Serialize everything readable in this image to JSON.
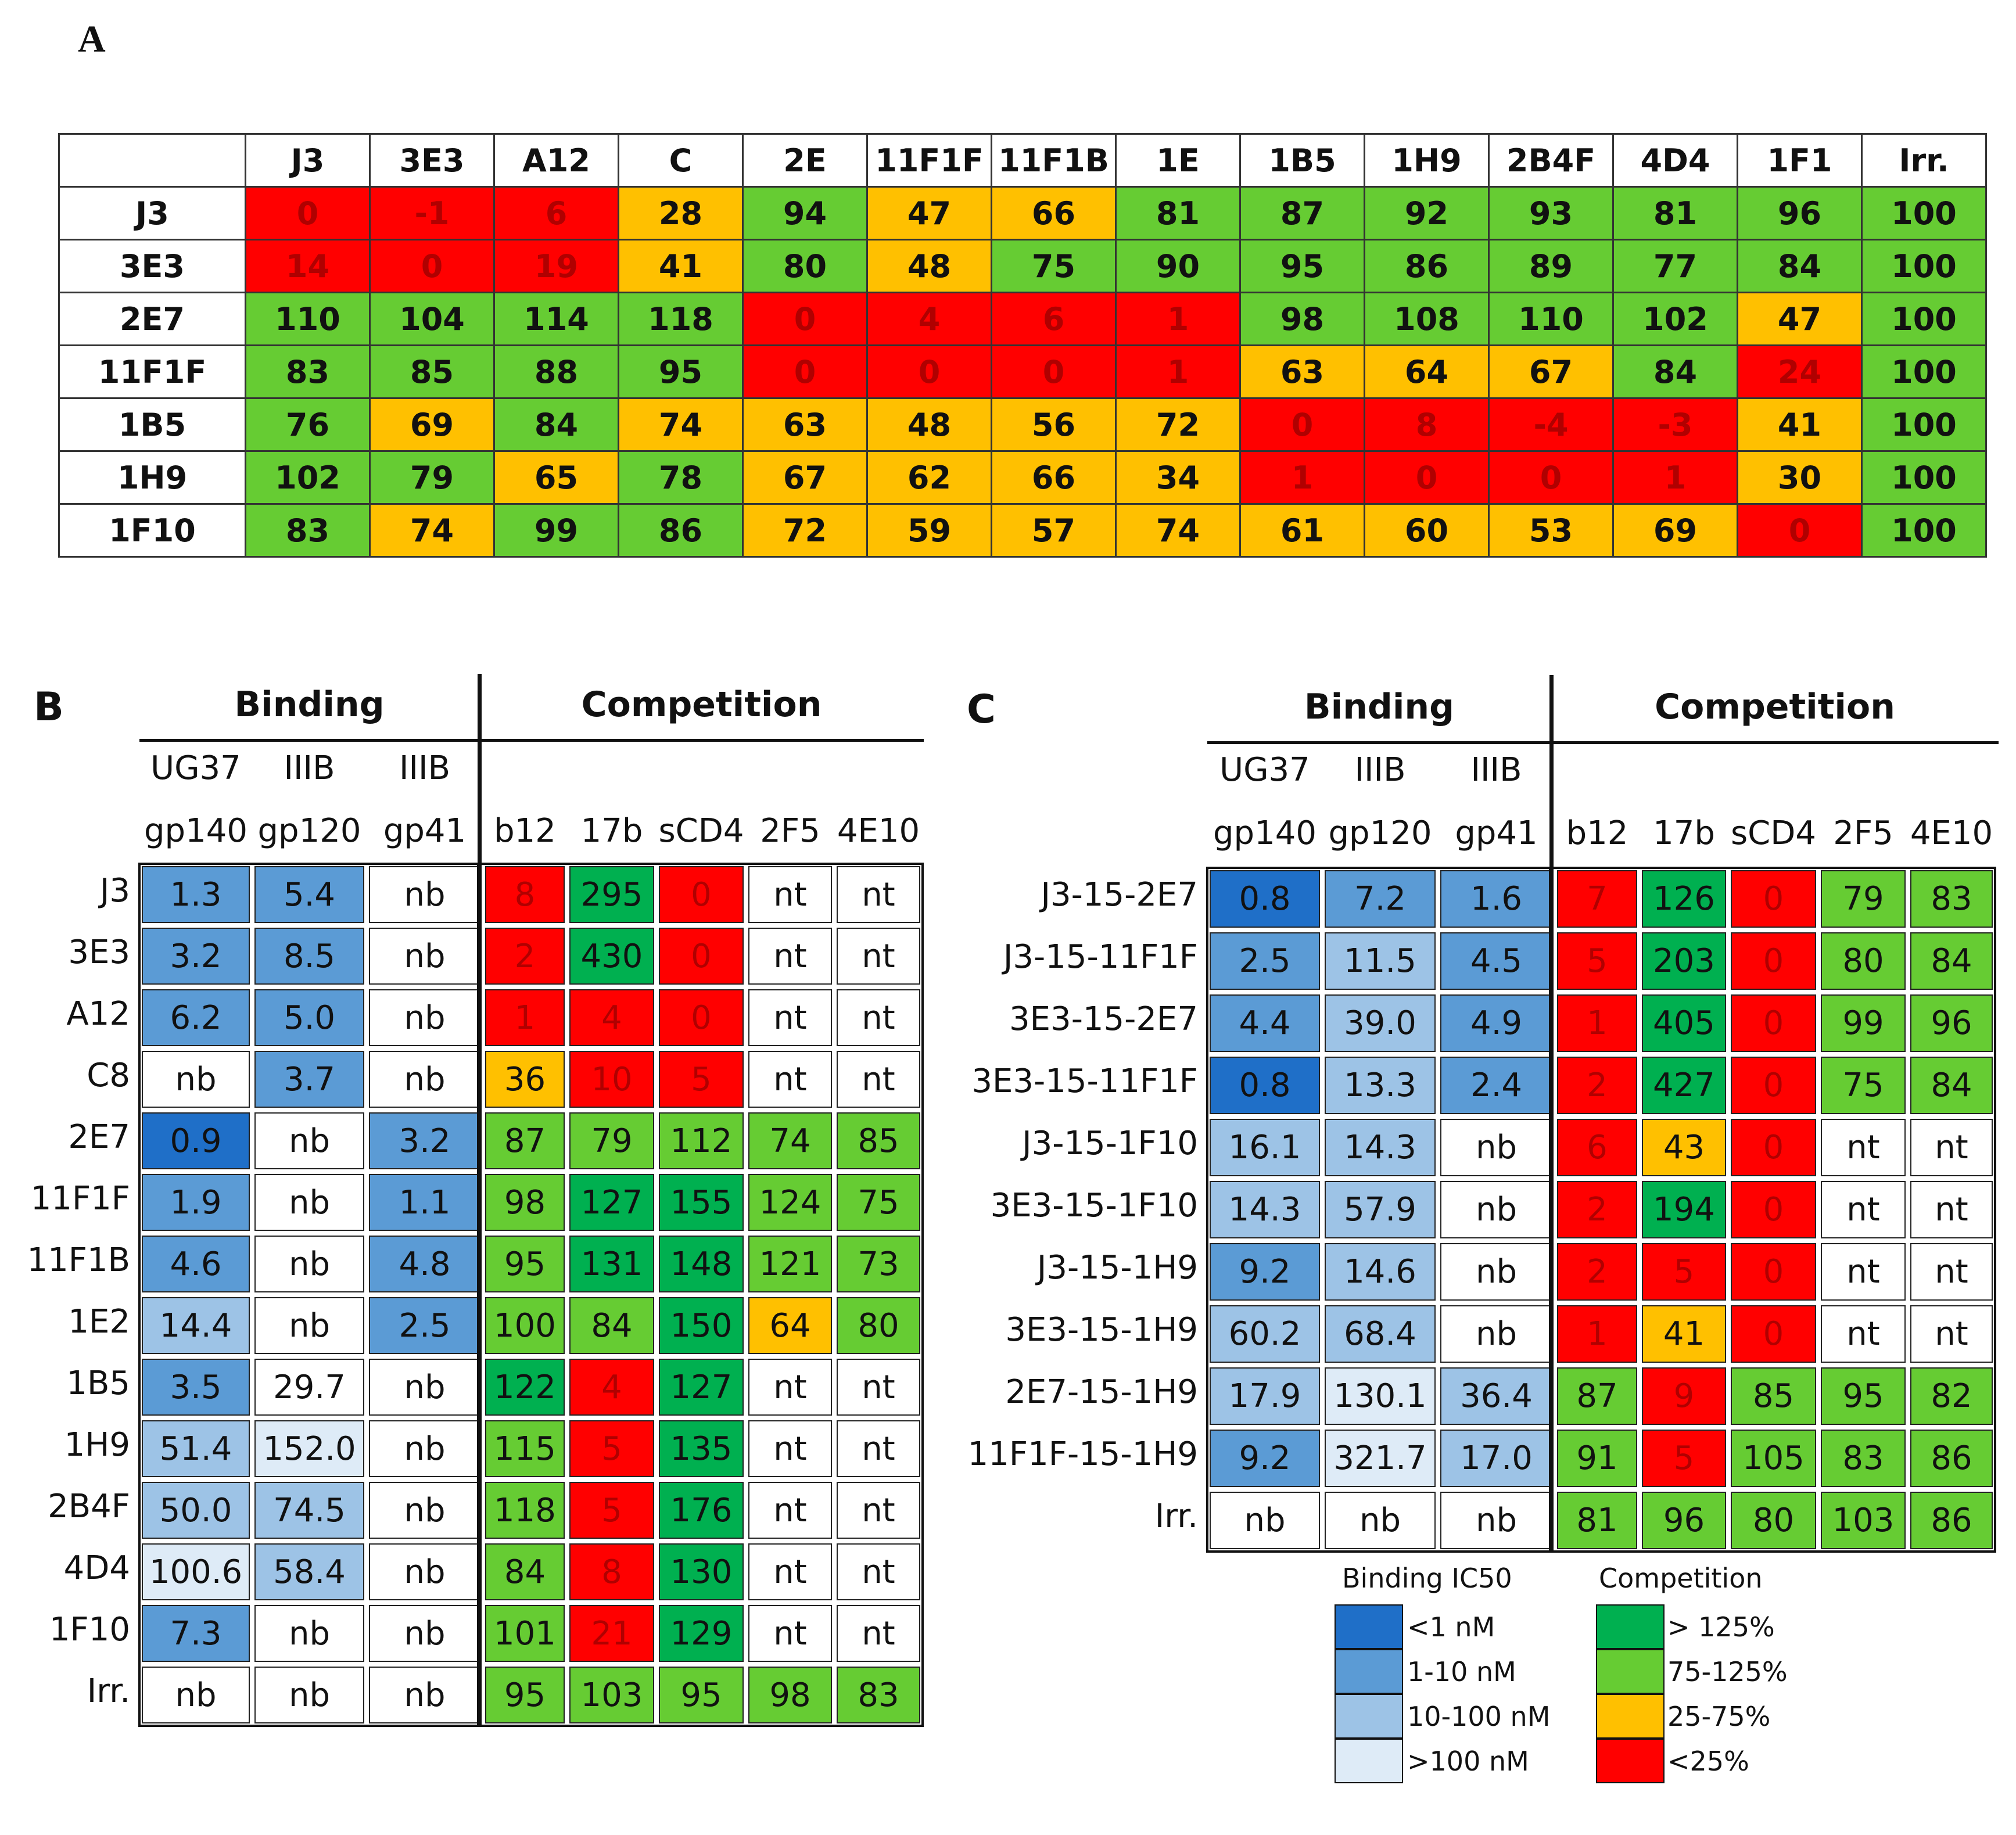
{
  "panel_labels": {
    "a": "A",
    "b": "B",
    "c": "C"
  },
  "colors": {
    "red": "#ff0000",
    "orange": "#ffc000",
    "green": "#66cc33",
    "dark_green": "#00b050",
    "blue_dark": "#1f6fc8",
    "blue": "#5b9bd5",
    "blue_light": "#9dc3e6",
    "blue_pale": "#deebf7",
    "white": "#ffffff"
  },
  "panel_a": {
    "columns": [
      "J3",
      "3E3",
      "A12",
      "C",
      "2E",
      "11F1F",
      "11F1B",
      "1E",
      "1B5",
      "1H9",
      "2B4F",
      "4D4",
      "1F1",
      "Irr."
    ],
    "rows": [
      {
        "label": "J3",
        "values": [
          "0",
          "-1",
          "6",
          "28",
          "94",
          "47",
          "66",
          "81",
          "87",
          "92",
          "93",
          "81",
          "96",
          "100"
        ],
        "colors": [
          "r",
          "r",
          "r",
          "o",
          "g",
          "o",
          "o",
          "g",
          "g",
          "g",
          "g",
          "g",
          "g",
          "g"
        ]
      },
      {
        "label": "3E3",
        "values": [
          "14",
          "0",
          "19",
          "41",
          "80",
          "48",
          "75",
          "90",
          "95",
          "86",
          "89",
          "77",
          "84",
          "100"
        ],
        "colors": [
          "r",
          "r",
          "r",
          "o",
          "g",
          "o",
          "g",
          "g",
          "g",
          "g",
          "g",
          "g",
          "g",
          "g"
        ]
      },
      {
        "label": "2E7",
        "values": [
          "110",
          "104",
          "114",
          "118",
          "0",
          "4",
          "6",
          "1",
          "98",
          "108",
          "110",
          "102",
          "47",
          "100"
        ],
        "colors": [
          "g",
          "g",
          "g",
          "g",
          "r",
          "r",
          "r",
          "r",
          "g",
          "g",
          "g",
          "g",
          "o",
          "g"
        ]
      },
      {
        "label": "11F1F",
        "values": [
          "83",
          "85",
          "88",
          "95",
          "0",
          "0",
          "0",
          "1",
          "63",
          "64",
          "67",
          "84",
          "24",
          "100"
        ],
        "colors": [
          "g",
          "g",
          "g",
          "g",
          "r",
          "r",
          "r",
          "r",
          "o",
          "o",
          "o",
          "g",
          "r",
          "g"
        ]
      },
      {
        "label": "1B5",
        "values": [
          "76",
          "69",
          "84",
          "74",
          "63",
          "48",
          "56",
          "72",
          "0",
          "8",
          "-4",
          "-3",
          "41",
          "100"
        ],
        "colors": [
          "g",
          "o",
          "g",
          "o",
          "o",
          "o",
          "o",
          "o",
          "r",
          "r",
          "r",
          "r",
          "o",
          "g"
        ]
      },
      {
        "label": "1H9",
        "values": [
          "102",
          "79",
          "65",
          "78",
          "67",
          "62",
          "66",
          "34",
          "1",
          "0",
          "0",
          "1",
          "30",
          "100"
        ],
        "colors": [
          "g",
          "g",
          "o",
          "g",
          "o",
          "o",
          "o",
          "o",
          "r",
          "r",
          "r",
          "r",
          "o",
          "g"
        ]
      },
      {
        "label": "1F10",
        "values": [
          "83",
          "74",
          "99",
          "86",
          "72",
          "59",
          "57",
          "74",
          "61",
          "60",
          "53",
          "69",
          "0",
          "100"
        ],
        "colors": [
          "g",
          "o",
          "g",
          "g",
          "o",
          "o",
          "o",
          "o",
          "o",
          "o",
          "o",
          "o",
          "r",
          "g"
        ]
      }
    ]
  },
  "panel_b": {
    "binding_title": "Binding",
    "competition_title": "Competition",
    "col_top": [
      "UG37",
      "IIIB",
      "IIIB",
      "",
      "",
      "",
      "",
      ""
    ],
    "col_bottom": [
      "gp140",
      "gp120",
      "gp41",
      "b12",
      "17b",
      "sCD4",
      "2F5",
      "4E10"
    ],
    "rows": [
      {
        "label": "J3",
        "values": [
          "1.3",
          "5.4",
          "nb",
          "8",
          "295",
          "0",
          "nt",
          "nt"
        ],
        "colors": [
          "b",
          "b",
          "w",
          "r",
          "dg",
          "r",
          "w",
          "w"
        ]
      },
      {
        "label": "3E3",
        "values": [
          "3.2",
          "8.5",
          "nb",
          "2",
          "430",
          "0",
          "nt",
          "nt"
        ],
        "colors": [
          "b",
          "b",
          "w",
          "r",
          "dg",
          "r",
          "w",
          "w"
        ]
      },
      {
        "label": "A12",
        "values": [
          "6.2",
          "5.0",
          "nb",
          "1",
          "4",
          "0",
          "nt",
          "nt"
        ],
        "colors": [
          "b",
          "b",
          "w",
          "r",
          "r",
          "r",
          "w",
          "w"
        ]
      },
      {
        "label": "C8",
        "values": [
          "nb",
          "3.7",
          "nb",
          "36",
          "10",
          "5",
          "nt",
          "nt"
        ],
        "colors": [
          "w",
          "b",
          "w",
          "o",
          "r",
          "r",
          "w",
          "w"
        ]
      },
      {
        "label": "2E7",
        "values": [
          "0.9",
          "nb",
          "3.2",
          "87",
          "79",
          "112",
          "74",
          "85"
        ],
        "colors": [
          "bd",
          "w",
          "b",
          "g",
          "g",
          "g",
          "g",
          "g"
        ]
      },
      {
        "label": "11F1F",
        "values": [
          "1.9",
          "nb",
          "1.1",
          "98",
          "127",
          "155",
          "124",
          "75"
        ],
        "colors": [
          "b",
          "w",
          "b",
          "g",
          "dg",
          "dg",
          "g",
          "g"
        ]
      },
      {
        "label": "11F1B",
        "values": [
          "4.6",
          "nb",
          "4.8",
          "95",
          "131",
          "148",
          "121",
          "73"
        ],
        "colors": [
          "b",
          "w",
          "b",
          "g",
          "dg",
          "dg",
          "g",
          "g"
        ]
      },
      {
        "label": "1E2",
        "values": [
          "14.4",
          "nb",
          "2.5",
          "100",
          "84",
          "150",
          "64",
          "80"
        ],
        "colors": [
          "bl",
          "w",
          "b",
          "g",
          "g",
          "dg",
          "o",
          "g"
        ]
      },
      {
        "label": "1B5",
        "values": [
          "3.5",
          "29.7",
          "nb",
          "122",
          "4",
          "127",
          "nt",
          "nt"
        ],
        "colors": [
          "b",
          "w",
          "w",
          "dg",
          "r",
          "dg",
          "w",
          "w"
        ]
      },
      {
        "label": "1H9",
        "values": [
          "51.4",
          "152.0",
          "nb",
          "115",
          "5",
          "135",
          "nt",
          "nt"
        ],
        "colors": [
          "bl",
          "bp",
          "w",
          "g",
          "r",
          "dg",
          "w",
          "w"
        ]
      },
      {
        "label": "2B4F",
        "values": [
          "50.0",
          "74.5",
          "nb",
          "118",
          "5",
          "176",
          "nt",
          "nt"
        ],
        "colors": [
          "bl",
          "bl",
          "w",
          "g",
          "r",
          "dg",
          "w",
          "w"
        ]
      },
      {
        "label": "4D4",
        "values": [
          "100.6",
          "58.4",
          "nb",
          "84",
          "8",
          "130",
          "nt",
          "nt"
        ],
        "colors": [
          "bp",
          "bl",
          "w",
          "g",
          "r",
          "dg",
          "w",
          "w"
        ]
      },
      {
        "label": "1F10",
        "values": [
          "7.3",
          "nb",
          "nb",
          "101",
          "21",
          "129",
          "nt",
          "nt"
        ],
        "colors": [
          "b",
          "w",
          "w",
          "g",
          "r",
          "dg",
          "w",
          "w"
        ]
      },
      {
        "label": "Irr.",
        "values": [
          "nb",
          "nb",
          "nb",
          "95",
          "103",
          "95",
          "98",
          "83"
        ],
        "colors": [
          "w",
          "w",
          "w",
          "g",
          "g",
          "g",
          "g",
          "g"
        ]
      }
    ]
  },
  "panel_c": {
    "binding_title": "Binding",
    "competition_title": "Competition",
    "col_top": [
      "UG37",
      "IIIB",
      "IIIB",
      "",
      "",
      "",
      "",
      ""
    ],
    "col_bottom": [
      "gp140",
      "gp120",
      "gp41",
      "b12",
      "17b",
      "sCD4",
      "2F5",
      "4E10"
    ],
    "rows": [
      {
        "label": "J3-15-2E7",
        "values": [
          "0.8",
          "7.2",
          "1.6",
          "7",
          "126",
          "0",
          "79",
          "83"
        ],
        "colors": [
          "bd",
          "b",
          "b",
          "r",
          "dg",
          "r",
          "g",
          "g"
        ]
      },
      {
        "label": "J3-15-11F1F",
        "values": [
          "2.5",
          "11.5",
          "4.5",
          "5",
          "203",
          "0",
          "80",
          "84"
        ],
        "colors": [
          "b",
          "bl",
          "b",
          "r",
          "dg",
          "r",
          "g",
          "g"
        ]
      },
      {
        "label": "3E3-15-2E7",
        "values": [
          "4.4",
          "39.0",
          "4.9",
          "1",
          "405",
          "0",
          "99",
          "96"
        ],
        "colors": [
          "b",
          "bl",
          "b",
          "r",
          "dg",
          "r",
          "g",
          "g"
        ]
      },
      {
        "label": "3E3-15-11F1F",
        "values": [
          "0.8",
          "13.3",
          "2.4",
          "2",
          "427",
          "0",
          "75",
          "84"
        ],
        "colors": [
          "bd",
          "bl",
          "b",
          "r",
          "dg",
          "r",
          "g",
          "g"
        ]
      },
      {
        "label": "J3-15-1F10",
        "values": [
          "16.1",
          "14.3",
          "nb",
          "6",
          "43",
          "0",
          "nt",
          "nt"
        ],
        "colors": [
          "bl",
          "bl",
          "w",
          "r",
          "o",
          "r",
          "w",
          "w"
        ]
      },
      {
        "label": "3E3-15-1F10",
        "values": [
          "14.3",
          "57.9",
          "nb",
          "2",
          "194",
          "0",
          "nt",
          "nt"
        ],
        "colors": [
          "bl",
          "bl",
          "w",
          "r",
          "dg",
          "r",
          "w",
          "w"
        ]
      },
      {
        "label": "J3-15-1H9",
        "values": [
          "9.2",
          "14.6",
          "nb",
          "2",
          "5",
          "0",
          "nt",
          "nt"
        ],
        "colors": [
          "b",
          "bl",
          "w",
          "r",
          "r",
          "r",
          "w",
          "w"
        ]
      },
      {
        "label": "3E3-15-1H9",
        "values": [
          "60.2",
          "68.4",
          "nb",
          "1",
          "41",
          "0",
          "nt",
          "nt"
        ],
        "colors": [
          "bl",
          "bl",
          "w",
          "r",
          "o",
          "r",
          "w",
          "w"
        ]
      },
      {
        "label": "2E7-15-1H9",
        "values": [
          "17.9",
          "130.1",
          "36.4",
          "87",
          "9",
          "85",
          "95",
          "82"
        ],
        "colors": [
          "bl",
          "bp",
          "bl",
          "g",
          "r",
          "g",
          "g",
          "g"
        ]
      },
      {
        "label": "11F1F-15-1H9",
        "values": [
          "9.2",
          "321.7",
          "17.0",
          "91",
          "5",
          "105",
          "83",
          "86"
        ],
        "colors": [
          "b",
          "bp",
          "bl",
          "g",
          "r",
          "g",
          "g",
          "g"
        ]
      },
      {
        "label": "Irr.",
        "values": [
          "nb",
          "nb",
          "nb",
          "81",
          "96",
          "80",
          "103",
          "86"
        ],
        "colors": [
          "w",
          "w",
          "w",
          "g",
          "g",
          "g",
          "g",
          "g"
        ]
      }
    ]
  },
  "legend": {
    "binding_title": "Binding IC50",
    "competition_title": "Competition",
    "binding_items": [
      {
        "label": "<1 nM",
        "color": "bd"
      },
      {
        "label": "1-10 nM",
        "color": "b"
      },
      {
        "label": "10-100 nM",
        "color": "bl"
      },
      {
        "label": ">100 nM",
        "color": "bp"
      }
    ],
    "competition_items": [
      {
        "label": "> 125%",
        "color": "dg"
      },
      {
        "label": "75-125%",
        "color": "g"
      },
      {
        "label": "25-75%",
        "color": "o"
      },
      {
        "label": "<25%",
        "color": "r"
      }
    ]
  }
}
